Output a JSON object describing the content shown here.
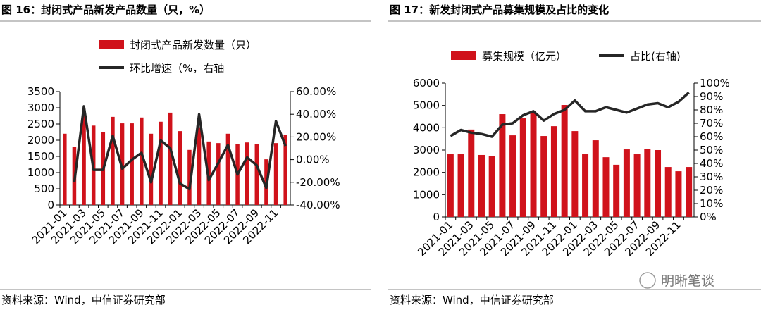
{
  "chart_data": [
    {
      "type": "bar",
      "title": "图 16：封闭式产品新发产品数量（只，%）",
      "source": "资料来源：Wind，中信证券研究部",
      "categories": [
        "2021-01",
        null,
        "2021-03",
        null,
        "2021-05",
        null,
        "2021-07",
        null,
        "2021-09",
        null,
        "2021-11",
        null,
        "2022-01",
        null,
        "2022-03",
        null,
        "2022-05",
        null,
        "2022-07",
        null,
        "2022-09",
        null,
        "2022-11",
        null
      ],
      "series": [
        {
          "name": "封闭式产品新发数量（只）",
          "color": "#d0121b",
          "values": [
            2200,
            1800,
            2740,
            2450,
            2240,
            2720,
            2520,
            2520,
            2700,
            2200,
            2570,
            2850,
            2280,
            1700,
            2400,
            1960,
            1910,
            2200,
            1870,
            1930,
            1890,
            1410,
            1910,
            2170
          ]
        },
        {
          "name": "环比增速（%，右轴",
          "color": "#262626",
          "axis": "y2",
          "values": [
            null,
            -20,
            47,
            -9,
            -9,
            21,
            -8,
            0,
            6,
            -20,
            17,
            10,
            -21,
            -26,
            40,
            -18,
            -3,
            13,
            -13,
            2,
            -5,
            -25,
            34,
            12
          ]
        }
      ],
      "ylim": [
        0,
        3500
      ],
      "yticks": [
        0,
        500,
        1000,
        1500,
        2000,
        2500,
        3000,
        3500
      ],
      "y2lim": [
        -40,
        60
      ],
      "y2ticks": [
        {
          "value": -40,
          "label": "-40.00%"
        },
        {
          "value": -20,
          "label": "-20.00%"
        },
        {
          "value": 0,
          "label": "0.00%"
        },
        {
          "value": 20,
          "label": "20.00%"
        },
        {
          "value": 40,
          "label": "40.00%"
        },
        {
          "value": 60,
          "label": "60.00%"
        }
      ]
    },
    {
      "type": "bar",
      "title": "图 17：新发封闭式产品募集规模及占比的变化",
      "source": "资料来源：Wind，中信证券研究部",
      "categories": [
        "2021-01",
        null,
        "2021-03",
        null,
        "2021-05",
        null,
        "2021-07",
        null,
        "2021-09",
        null,
        "2021-11",
        null,
        "2022-01",
        null,
        "2022-03",
        null,
        "2022-05",
        null,
        "2022-07",
        null,
        "2022-09",
        null,
        "2022-11",
        null
      ],
      "series": [
        {
          "name": "募集规模（亿元）",
          "color": "#d0121b",
          "values": [
            2810,
            2810,
            3920,
            2780,
            2720,
            4610,
            3660,
            4420,
            4670,
            3630,
            4070,
            5020,
            3850,
            2810,
            3440,
            2680,
            2340,
            3030,
            2810,
            3060,
            3000,
            2240,
            2050,
            2240
          ]
        },
        {
          "name": "占比(右轴)",
          "color": "#262626",
          "axis": "y2",
          "values": [
            60.5,
            65,
            63,
            62,
            60,
            69,
            70,
            76,
            79,
            72,
            77,
            80,
            87,
            79,
            79,
            82,
            80,
            78,
            81,
            84,
            85,
            82,
            86,
            93
          ]
        }
      ],
      "ylim": [
        0,
        6000
      ],
      "yticks": [
        0,
        1000,
        2000,
        3000,
        4000,
        5000,
        6000
      ],
      "y2lim": [
        0,
        100
      ],
      "y2ticks": [
        {
          "value": 0,
          "label": "0%"
        },
        {
          "value": 10,
          "label": "10%"
        },
        {
          "value": 20,
          "label": "20%"
        },
        {
          "value": 30,
          "label": "30%"
        },
        {
          "value": 40,
          "label": "40%"
        },
        {
          "value": 50,
          "label": "50%"
        },
        {
          "value": 60,
          "label": "60%"
        },
        {
          "value": 70,
          "label": "70%"
        },
        {
          "value": 80,
          "label": "80%"
        },
        {
          "value": 90,
          "label": "90%"
        },
        {
          "value": 100,
          "label": "100%"
        }
      ]
    }
  ],
  "watermark": "明晰笔谈"
}
